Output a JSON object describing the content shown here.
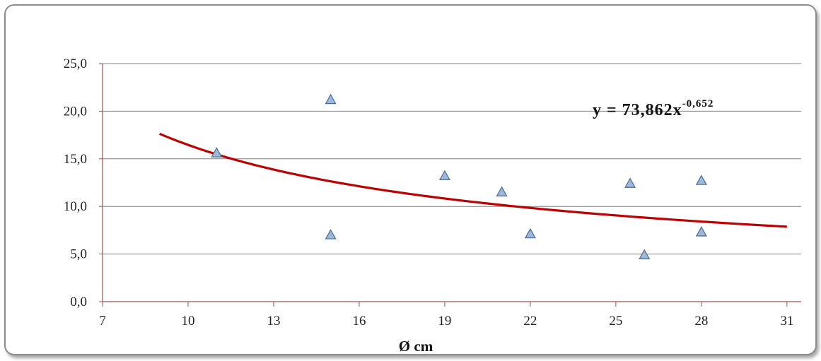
{
  "chart_data": {
    "type": "scatter",
    "title": "",
    "xlabel": "Ø cm",
    "ylabel": "",
    "xlim": [
      7,
      31.5
    ],
    "ylim": [
      0,
      25
    ],
    "x_ticks": [
      "7",
      "10",
      "13",
      "16",
      "19",
      "22",
      "25",
      "28",
      "31"
    ],
    "y_ticks": [
      "0,0",
      "5,0",
      "10,0",
      "15,0",
      "20,0",
      "25,0"
    ],
    "grid": true,
    "legend": "none",
    "series": [
      {
        "marker": "triangle",
        "color": "#9db8d8",
        "points": [
          {
            "x": 11,
            "y": 15.6
          },
          {
            "x": 15,
            "y": 21.2
          },
          {
            "x": 15,
            "y": 7.0
          },
          {
            "x": 19,
            "y": 13.2
          },
          {
            "x": 21,
            "y": 11.5
          },
          {
            "x": 22,
            "y": 7.1
          },
          {
            "x": 25.5,
            "y": 12.4
          },
          {
            "x": 26,
            "y": 4.9
          },
          {
            "x": 28,
            "y": 12.7
          },
          {
            "x": 28,
            "y": 7.3
          }
        ]
      }
    ],
    "trendline": {
      "type": "power",
      "coefficient": 73.862,
      "exponent": -0.652,
      "x_range": [
        9,
        31
      ],
      "color": "#c00000",
      "equation": {
        "base": "y  =  73,862x",
        "exponent": "-0,652"
      }
    },
    "colors": {
      "gridline": "#808080",
      "axis": "#a05050",
      "marker_stroke": "#4a6a96"
    }
  }
}
